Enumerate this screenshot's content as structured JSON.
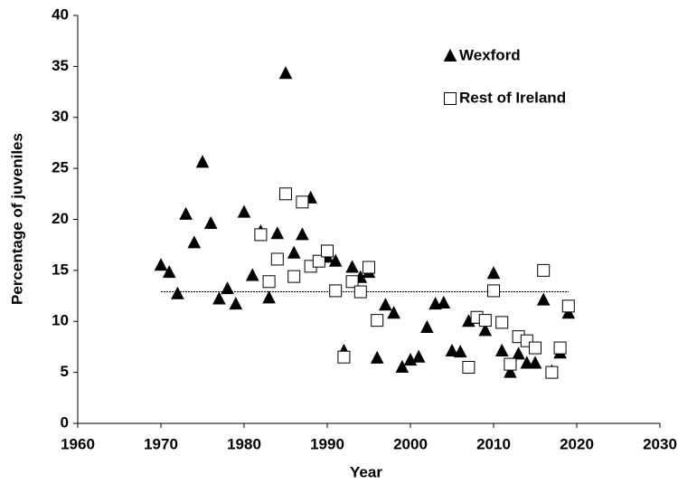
{
  "chart_data": {
    "type": "scatter",
    "x_label": "Year",
    "y_label": "Percentage of juveniles",
    "xlim": [
      1960,
      2030
    ],
    "xticks": [
      1960,
      1970,
      1980,
      1990,
      2000,
      2010,
      2020,
      2030
    ],
    "ylim": [
      0,
      40
    ],
    "yticks": [
      0,
      5,
      10,
      15,
      20,
      25,
      30,
      35,
      40
    ],
    "grid": false,
    "legend": "upper right",
    "reference_line": {
      "y": 12.9,
      "x": [
        1970,
        2019
      ]
    },
    "series": [
      {
        "name": "Wexford",
        "color": "#000000",
        "marker": "triangle",
        "x": [
          1970,
          1971,
          1972,
          1973,
          1974,
          1975,
          1976,
          1977,
          1978,
          1979,
          1980,
          1981,
          1982,
          1983,
          1984,
          1985,
          1986,
          1987,
          1988,
          1990,
          1991,
          1992,
          1993,
          1994,
          1995,
          1996,
          1997,
          1998,
          1999,
          2000,
          2001,
          2002,
          2003,
          2004,
          2005,
          2006,
          2007,
          2008,
          2009,
          2010,
          2011,
          2012,
          2013,
          2014,
          2015,
          2016,
          2017,
          2018,
          2019
        ],
        "values": [
          15.5,
          14.8,
          12.7,
          20.5,
          17.7,
          25.6,
          19.6,
          12.2,
          13.2,
          11.7,
          20.7,
          14.5,
          18.8,
          12.3,
          18.6,
          34.3,
          16.7,
          18.5,
          22.1,
          16.3,
          15.9,
          7.1,
          15.3,
          14.3,
          14.8,
          6.4,
          11.6,
          10.8,
          5.5,
          6.2,
          6.5,
          9.4,
          11.7,
          11.8,
          7.1,
          7.0,
          10.0,
          10.3,
          9.1,
          14.7,
          7.1,
          5.0,
          6.8,
          5.9,
          5.9,
          12.1,
          5.1,
          6.9,
          10.8
        ]
      },
      {
        "name": "Rest of Ireland",
        "color": "#ffffff",
        "marker": "square",
        "x": [
          1982,
          1983,
          1984,
          1985,
          1986,
          1987,
          1988,
          1989,
          1990,
          1991,
          1992,
          1993,
          1994,
          1995,
          1996,
          2007,
          2008,
          2009,
          2010,
          2011,
          2012,
          2013,
          2014,
          2015,
          2016,
          2017,
          2018,
          2019
        ],
        "values": [
          18.5,
          13.9,
          16.1,
          22.5,
          14.4,
          21.7,
          15.4,
          15.9,
          16.9,
          13.0,
          6.5,
          13.9,
          12.9,
          15.3,
          10.1,
          5.5,
          10.4,
          10.1,
          13.0,
          9.9,
          5.8,
          8.5,
          8.1,
          7.4,
          15.0,
          5.0,
          7.4,
          11.5
        ]
      }
    ]
  }
}
